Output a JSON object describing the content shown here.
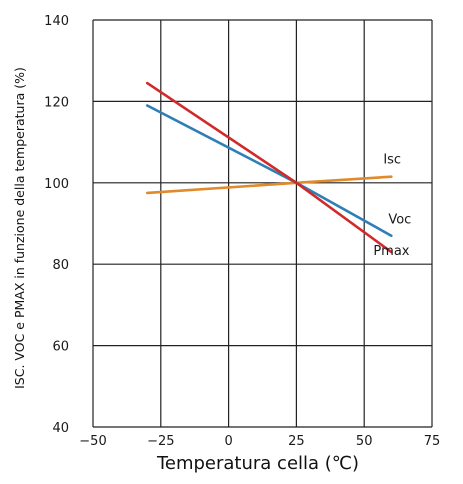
{
  "chart_data": {
    "type": "line",
    "title": "",
    "xlabel": "Temperatura cella (℃)",
    "ylabel": "ISC. VOC e PMAX in funzione della temperatura (%)",
    "xlim": [
      -50,
      75
    ],
    "ylim": [
      40,
      140
    ],
    "xticks": [
      "−50",
      "−25",
      "0",
      "25",
      "50",
      "75"
    ],
    "yticks": [
      "40",
      "60",
      "80",
      "100",
      "120",
      "140"
    ],
    "grid": true,
    "series": [
      {
        "name": "Isc",
        "color": "#e08a2a",
        "x": [
          -30,
          25,
          60
        ],
        "y": [
          97.5,
          100,
          101.5
        ]
      },
      {
        "name": "Voc",
        "color": "#2f7fb5",
        "x": [
          -30,
          25,
          60
        ],
        "y": [
          119,
          100,
          87
        ]
      },
      {
        "name": "Pmax",
        "color": "#d12a2a",
        "x": [
          -30,
          25,
          60
        ],
        "y": [
          124.5,
          100,
          83
        ]
      }
    ]
  }
}
